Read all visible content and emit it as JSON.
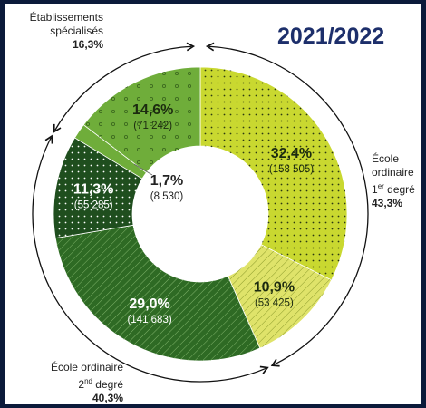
{
  "chart_data": {
    "type": "pie",
    "title": "2021/2022",
    "slices": [
      {
        "label": "",
        "percent": "32,4%",
        "value": 32.4,
        "count": "(158 505)",
        "color": "#c9d830",
        "pattern": "dots",
        "text_color": "#1c2b10"
      },
      {
        "label": "",
        "percent": "10,9%",
        "value": 10.9,
        "count": "(53 425)",
        "color": "#dfe36a",
        "pattern": "hatch",
        "text_color": "#1c2b10"
      },
      {
        "label": "",
        "percent": "29,0%",
        "value": 29.0,
        "count": "(141 683)",
        "color": "#2e6a24",
        "pattern": "hatch",
        "text_color": "#ffffff"
      },
      {
        "label": "",
        "percent": "11,3%",
        "value": 11.3,
        "count": "(55 285)",
        "color": "#1f4e1e",
        "pattern": "dots",
        "text_color": "#ffffff"
      },
      {
        "label": "",
        "percent": "1,7%",
        "value": 1.7,
        "count": "(8 530)",
        "color": "#6fad3a",
        "pattern": "none",
        "text_color": "#1c2b10"
      },
      {
        "label": "",
        "percent": "14,6%",
        "value": 14.6,
        "count": "(71 242)",
        "color": "#6fad3a",
        "pattern": "circles",
        "text_color": "#1c2b10"
      }
    ],
    "groups": [
      {
        "lines": [
          "École",
          "ordinaire",
          "1er degré"
        ],
        "percent": "43,3%"
      },
      {
        "lines": [
          "École ordinaire",
          "2nd degré"
        ],
        "percent": "40,3%"
      },
      {
        "lines": [
          "Établissements",
          "spécialisés"
        ],
        "percent": "16,3%"
      }
    ]
  }
}
